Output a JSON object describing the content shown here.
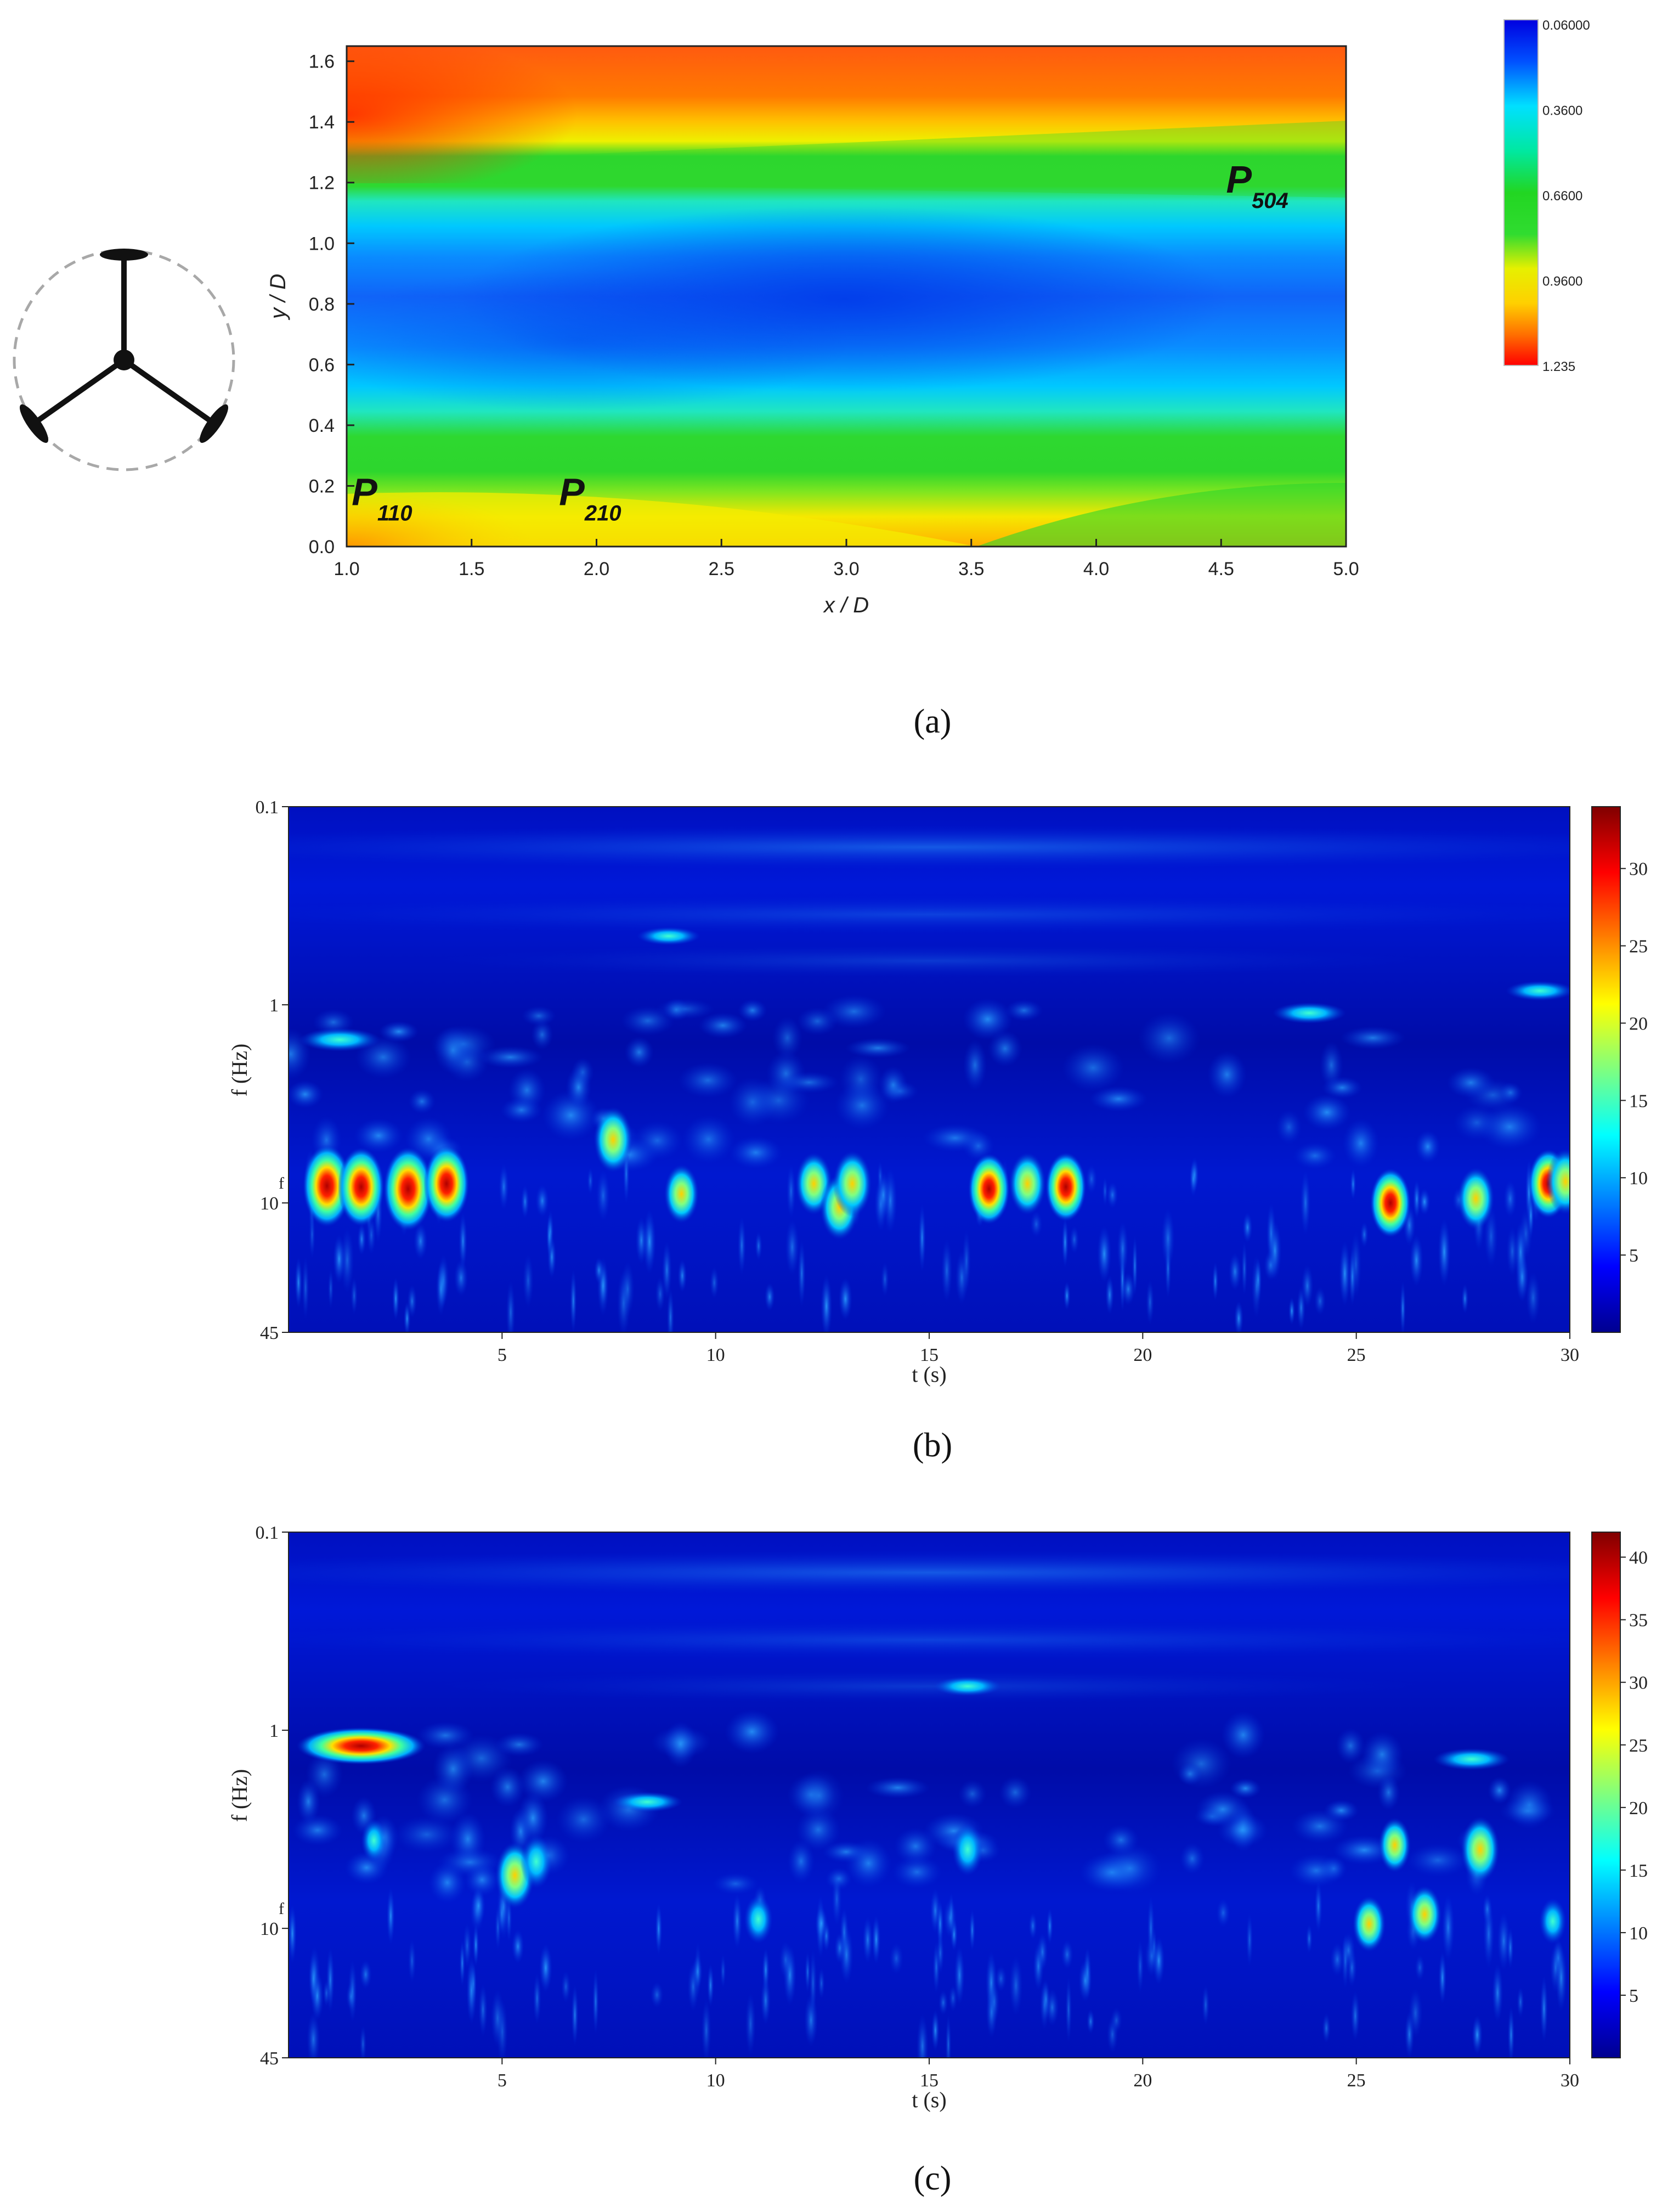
{
  "chart_data": [
    {
      "type": "heatmap",
      "panel_label": "(a)",
      "xlabel": "x / D",
      "ylabel": "y / D",
      "xlim": [
        1.0,
        5.0
      ],
      "ylim": [
        0.0,
        1.65
      ],
      "xticks": [
        "1.0",
        "1.5",
        "2.0",
        "2.5",
        "3.0",
        "3.5",
        "4.0",
        "4.5",
        "5.0"
      ],
      "xtick_values": [
        1.0,
        1.5,
        2.0,
        2.5,
        3.0,
        3.5,
        4.0,
        4.5,
        5.0
      ],
      "yticks": [
        "0.0",
        "0.2",
        "0.4",
        "0.6",
        "0.8",
        "1.0",
        "1.2",
        "1.4",
        "1.6"
      ],
      "ytick_values": [
        0.0,
        0.2,
        0.4,
        0.6,
        0.8,
        1.0,
        1.2,
        1.4,
        1.6
      ],
      "colorbar_labels": [
        "0.06000",
        "0.3600",
        "0.6600",
        "0.9600",
        "1.235"
      ],
      "colorbar_range": [
        0.06,
        1.235
      ],
      "colorbar_reversed": true,
      "annotations": [
        {
          "main": "P",
          "sub": "110",
          "x": 1.02,
          "y": 0.18
        },
        {
          "main": "P",
          "sub": "210",
          "x": 1.85,
          "y": 0.18
        },
        {
          "main": "P",
          "sub": "504",
          "x": 4.52,
          "y": 1.21
        }
      ],
      "field_bands": [
        {
          "y": 0.0,
          "value": 1.15
        },
        {
          "y": 0.12,
          "value": 0.96
        },
        {
          "y": 0.22,
          "value": 0.66
        },
        {
          "y": 0.42,
          "value": 0.36
        },
        {
          "y": 0.62,
          "value": 0.22
        },
        {
          "y": 0.82,
          "value": 0.15
        },
        {
          "y": 1.02,
          "value": 0.36
        },
        {
          "y": 1.22,
          "value": 0.66
        },
        {
          "y": 1.32,
          "value": 0.96
        },
        {
          "y": 1.45,
          "value": 1.2
        },
        {
          "y": 1.65,
          "value": 1.1
        }
      ],
      "inset": "turbine-rotor-icon"
    },
    {
      "type": "heatmap",
      "panel_label": "(b)",
      "xlabel": "t (s)",
      "ylabel": "f (Hz)",
      "xlim": [
        0,
        30
      ],
      "ylim": [
        0.1,
        45
      ],
      "yscale": "log",
      "xticks": [
        "5",
        "10",
        "15",
        "20",
        "25",
        "30"
      ],
      "xtick_values": [
        5,
        10,
        15,
        20,
        25,
        30
      ],
      "yticks": [
        "0.1",
        "1",
        "10",
        "45"
      ],
      "ytick_values": [
        0.1,
        1,
        10,
        45
      ],
      "y_marker": "f",
      "colorbar_labels": [
        "5",
        "10",
        "15",
        "20",
        "25",
        "30"
      ],
      "colorbar_values": [
        5,
        10,
        15,
        20,
        25,
        30
      ],
      "colorbar_range": [
        0,
        34
      ],
      "hotspots": [
        {
          "t": 0.9,
          "f": 8.2,
          "value": 32
        },
        {
          "t": 1.7,
          "f": 8.3,
          "value": 30
        },
        {
          "t": 2.8,
          "f": 8.5,
          "value": 33
        },
        {
          "t": 3.7,
          "f": 8.0,
          "value": 29
        },
        {
          "t": 7.6,
          "f": 4.8,
          "value": 22
        },
        {
          "t": 9.2,
          "f": 9.0,
          "value": 18
        },
        {
          "t": 12.3,
          "f": 8.0,
          "value": 20
        },
        {
          "t": 12.9,
          "f": 10.5,
          "value": 22
        },
        {
          "t": 13.2,
          "f": 8.0,
          "value": 22
        },
        {
          "t": 16.4,
          "f": 8.5,
          "value": 25
        },
        {
          "t": 17.3,
          "f": 8.0,
          "value": 20
        },
        {
          "t": 18.2,
          "f": 8.3,
          "value": 24
        },
        {
          "t": 25.8,
          "f": 10.0,
          "value": 24
        },
        {
          "t": 27.8,
          "f": 9.5,
          "value": 20
        },
        {
          "t": 29.5,
          "f": 8.0,
          "value": 24
        },
        {
          "t": 29.9,
          "f": 7.8,
          "value": 22
        },
        {
          "t": 1.2,
          "f": 1.5,
          "value": 14
        },
        {
          "t": 23.9,
          "f": 1.1,
          "value": 11
        },
        {
          "t": 29.3,
          "f": 0.85,
          "value": 9
        },
        {
          "t": 8.9,
          "f": 0.45,
          "value": 7
        }
      ]
    },
    {
      "type": "heatmap",
      "panel_label": "(c)",
      "xlabel": "t (s)",
      "ylabel": "f (Hz)",
      "xlim": [
        0,
        30
      ],
      "ylim": [
        0.1,
        45
      ],
      "yscale": "log",
      "xticks": [
        "5",
        "10",
        "15",
        "20",
        "25",
        "30"
      ],
      "xtick_values": [
        5,
        10,
        15,
        20,
        25,
        30
      ],
      "yticks": [
        "0.1",
        "1",
        "10",
        "45"
      ],
      "ytick_values": [
        0.1,
        1,
        10,
        45
      ],
      "y_marker": "f",
      "colorbar_labels": [
        "5",
        "10",
        "15",
        "20",
        "25",
        "30",
        "35",
        "40"
      ],
      "colorbar_values": [
        5,
        10,
        15,
        20,
        25,
        30,
        35,
        40
      ],
      "colorbar_range": [
        0,
        42
      ],
      "hotspots": [
        {
          "t": 1.7,
          "f": 1.2,
          "value": 41
        },
        {
          "t": 5.3,
          "f": 5.4,
          "value": 28
        },
        {
          "t": 5.8,
          "f": 4.6,
          "value": 18
        },
        {
          "t": 15.9,
          "f": 0.6,
          "value": 11
        },
        {
          "t": 15.9,
          "f": 4.0,
          "value": 17
        },
        {
          "t": 25.3,
          "f": 9.5,
          "value": 20
        },
        {
          "t": 25.9,
          "f": 3.8,
          "value": 19
        },
        {
          "t": 26.6,
          "f": 8.5,
          "value": 21
        },
        {
          "t": 27.9,
          "f": 4.0,
          "value": 27
        },
        {
          "t": 27.7,
          "f": 1.4,
          "value": 15
        },
        {
          "t": 11.0,
          "f": 9.0,
          "value": 14
        },
        {
          "t": 8.4,
          "f": 2.3,
          "value": 12
        },
        {
          "t": 2.0,
          "f": 3.6,
          "value": 10
        },
        {
          "t": 29.6,
          "f": 9.2,
          "value": 12
        }
      ]
    }
  ]
}
